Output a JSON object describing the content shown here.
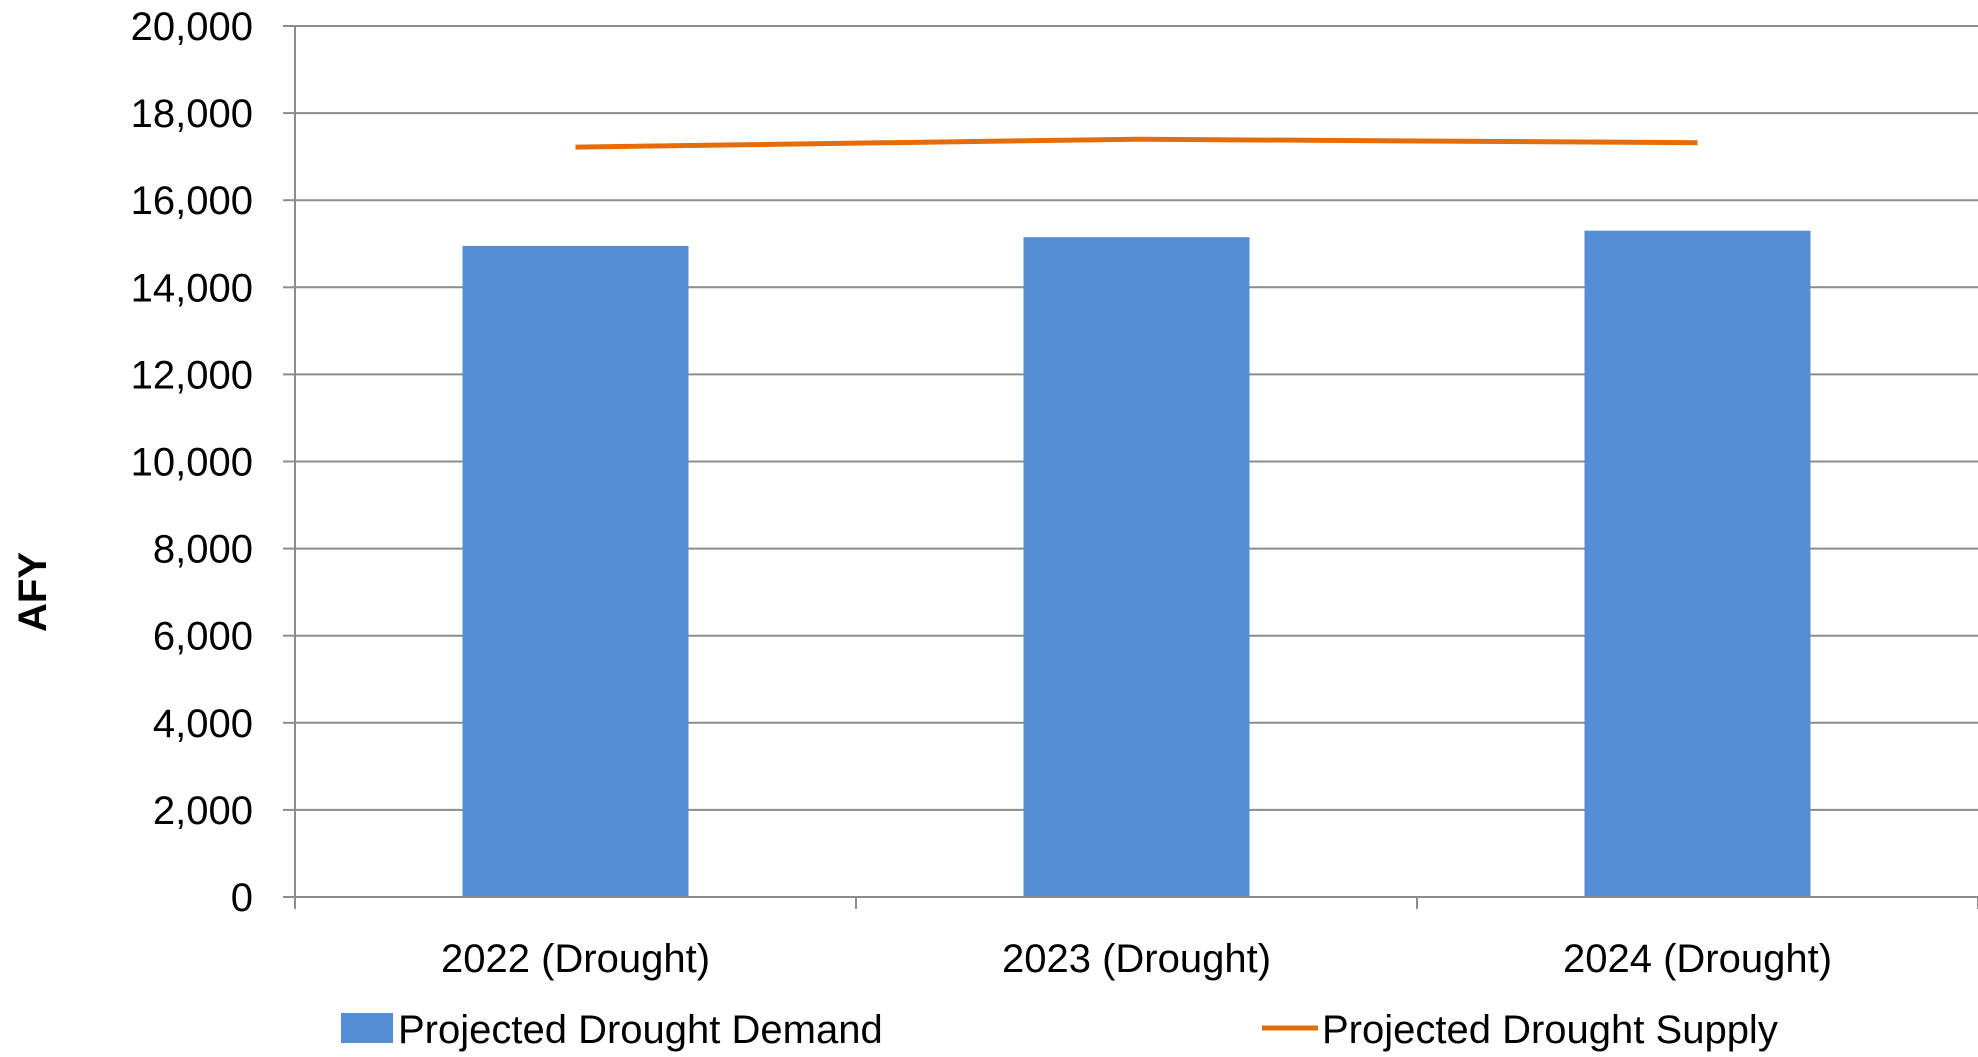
{
  "chart_data": {
    "type": "bar",
    "title": "",
    "xlabel": "",
    "ylabel": "AFY",
    "ylim": [
      0,
      20000
    ],
    "yticks": [
      0,
      2000,
      4000,
      6000,
      8000,
      10000,
      12000,
      14000,
      16000,
      18000,
      20000
    ],
    "ytick_labels": [
      "0",
      "2,000",
      "4,000",
      "6,000",
      "8,000",
      "10,000",
      "12,000",
      "14,000",
      "16,000",
      "18,000",
      "20,000"
    ],
    "categories": [
      "2022 (Drought)",
      "2023 (Drought)",
      "2024 (Drought)"
    ],
    "series": [
      {
        "name": "Projected Drought Demand",
        "kind": "bar",
        "color": "#558ED5",
        "values": [
          14950,
          15150,
          15300
        ]
      },
      {
        "name": "Projected Drought Supply",
        "kind": "line",
        "color": "#E46C0A",
        "values": [
          17220,
          17400,
          17320
        ]
      }
    ],
    "grid": true,
    "legend": "bottom"
  }
}
